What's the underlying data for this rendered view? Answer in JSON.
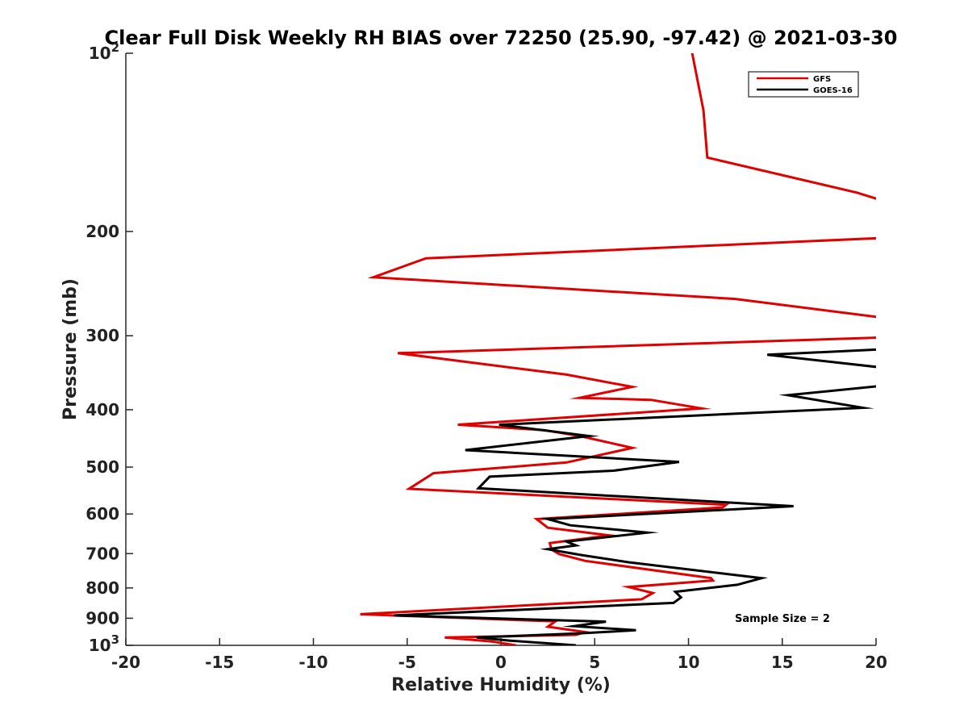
{
  "chart_data": {
    "type": "line",
    "title": "Clear Full Disk Weekly RH BIAS over 72250 (25.90, -97.42) @ 2021-03-30",
    "xlabel": "Relative Humidity (%)",
    "ylabel": "Pressure (mb)",
    "xlim": [
      -20,
      20
    ],
    "ylim": [
      100,
      1000
    ],
    "y_scale": "log",
    "y_reversed": true,
    "x_ticks": [
      "-20",
      "-15",
      "-10",
      "-5",
      "0",
      "5",
      "10",
      "15",
      "20"
    ],
    "y_ticks": [
      {
        "value": 100,
        "base": "10",
        "exp": "2"
      },
      {
        "value": 200,
        "label": "200"
      },
      {
        "value": 300,
        "label": "300"
      },
      {
        "value": 400,
        "label": "400"
      },
      {
        "value": 500,
        "label": "500"
      },
      {
        "value": 600,
        "label": "600"
      },
      {
        "value": 700,
        "label": "700"
      },
      {
        "value": 800,
        "label": "800"
      },
      {
        "value": 900,
        "label": "900"
      },
      {
        "value": 1000,
        "base": "10",
        "exp": "3"
      }
    ],
    "grid": false,
    "legend_position": "top-right",
    "annotation": "Sample Size = 2",
    "series": [
      {
        "name": "GFS",
        "color": "#e00000",
        "points": [
          [
            10.2,
            100
          ],
          [
            10.8,
            125
          ],
          [
            11.0,
            150
          ],
          [
            19.0,
            172
          ],
          [
            20.5,
            178
          ],
          [
            20.5,
            205
          ],
          [
            -4.0,
            222
          ],
          [
            -6.8,
            239
          ],
          [
            12.5,
            260
          ],
          [
            20.5,
            280
          ],
          [
            20.5,
            302
          ],
          [
            -5.5,
            321
          ],
          [
            3.5,
            349
          ],
          [
            7.0,
            366
          ],
          [
            4.2,
            382
          ],
          [
            8.0,
            385
          ],
          [
            10.7,
            398
          ],
          [
            -2.3,
            424
          ],
          [
            2.3,
            433
          ],
          [
            4.2,
            443
          ],
          [
            7.0,
            464
          ],
          [
            3.5,
            491
          ],
          [
            -3.6,
            512
          ],
          [
            -4.9,
            544
          ],
          [
            12.0,
            579
          ],
          [
            11.8,
            585
          ],
          [
            1.9,
            612
          ],
          [
            2.5,
            633
          ],
          [
            5.8,
            652
          ],
          [
            2.6,
            672
          ],
          [
            2.7,
            689
          ],
          [
            3.1,
            701
          ],
          [
            4.5,
            720
          ],
          [
            11.2,
            770
          ],
          [
            11.3,
            777
          ],
          [
            6.8,
            797
          ],
          [
            8.1,
            816
          ],
          [
            7.5,
            836
          ],
          [
            -7.5,
            886
          ],
          [
            2.9,
            911
          ],
          [
            2.5,
            930
          ],
          [
            4.5,
            950
          ],
          [
            4.0,
            960
          ],
          [
            -3.0,
            970
          ],
          [
            -0.5,
            985
          ],
          [
            0.8,
            1000
          ]
        ]
      },
      {
        "name": "GOES-16",
        "color": "#000000",
        "points": [
          [
            20.5,
            316
          ],
          [
            14.2,
            323
          ],
          [
            20.5,
            340
          ],
          [
            20.5,
            364
          ],
          [
            15.3,
            378
          ],
          [
            19.3,
            397
          ],
          [
            -0.1,
            424
          ],
          [
            4.7,
            443
          ],
          [
            -1.9,
            468
          ],
          [
            9.5,
            490
          ],
          [
            6.0,
            507
          ],
          [
            -0.6,
            519
          ],
          [
            -1.2,
            543
          ],
          [
            15.6,
            582
          ],
          [
            2.5,
            612
          ],
          [
            3.7,
            627
          ],
          [
            7.8,
            645
          ],
          [
            3.5,
            668
          ],
          [
            4.0,
            678
          ],
          [
            2.5,
            688
          ],
          [
            4.3,
            704
          ],
          [
            6.8,
            724
          ],
          [
            13.9,
            770
          ],
          [
            12.6,
            790
          ],
          [
            9.3,
            812
          ],
          [
            9.6,
            830
          ],
          [
            9.2,
            848
          ],
          [
            -5.7,
            890
          ],
          [
            5.6,
            912
          ],
          [
            3.9,
            928
          ],
          [
            7.2,
            943
          ],
          [
            4.1,
            955
          ],
          [
            -1.3,
            970
          ],
          [
            0.5,
            982
          ],
          [
            4.0,
            1000
          ]
        ]
      }
    ]
  }
}
